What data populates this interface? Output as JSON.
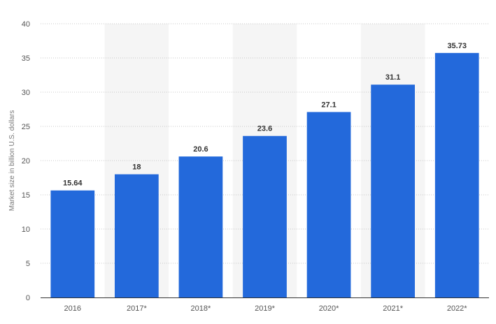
{
  "chart_data": {
    "type": "bar",
    "categories": [
      "2016",
      "2017*",
      "2018*",
      "2019*",
      "2020*",
      "2021*",
      "2022*"
    ],
    "values": [
      15.64,
      18,
      20.6,
      23.6,
      27.1,
      31.1,
      35.73
    ],
    "value_labels": [
      "15.64",
      "18",
      "20.6",
      "23.6",
      "27.1",
      "31.1",
      "35.73"
    ],
    "title": "",
    "xlabel": "",
    "ylabel": "Market size in billion U.S. dollars",
    "ylim": [
      0,
      40
    ],
    "yticks": [
      "0",
      "5",
      "10",
      "15",
      "20",
      "25",
      "30",
      "35",
      "40"
    ],
    "grid": true,
    "colors": {
      "bar": "#2369db",
      "band": "#f5f5f5",
      "grid": "#c8c8c8",
      "axis": "#333333"
    }
  }
}
